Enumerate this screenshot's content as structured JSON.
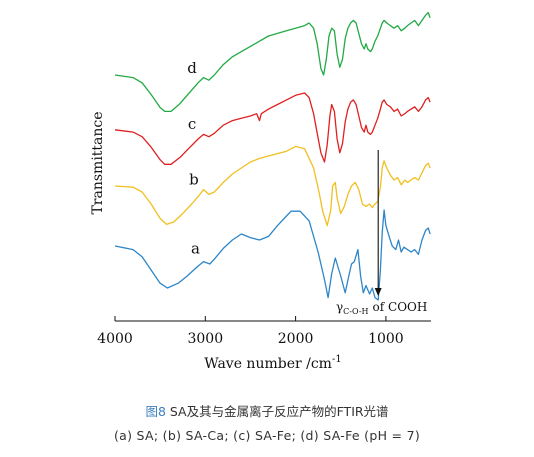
{
  "chart_data": {
    "type": "line",
    "title": "",
    "xlabel": "Wave number /cm",
    "xlabel_sup": "-1",
    "ylabel": "Transmittance",
    "xlim": [
      4000,
      500
    ],
    "x_ticks": [
      4000,
      3000,
      2000,
      1000
    ],
    "x_tick_labels": [
      "4000",
      "3000",
      "2000",
      "1000"
    ],
    "y_ticks": "none",
    "grid": false,
    "legend": "none (curves labeled inline)",
    "annotation": {
      "symbol": "γ",
      "subscript": "C-O-H",
      "text": "of COOH",
      "arrow_at": 1085
    },
    "series": [
      {
        "label": "a",
        "color": "#2e86c8",
        "points": [
          [
            4000,
            0.45
          ],
          [
            3800,
            0.42
          ],
          [
            3700,
            0.36
          ],
          [
            3600,
            0.25
          ],
          [
            3500,
            0.14
          ],
          [
            3420,
            0.1
          ],
          [
            3300,
            0.14
          ],
          [
            3200,
            0.2
          ],
          [
            3100,
            0.27
          ],
          [
            3020,
            0.32
          ],
          [
            2950,
            0.3
          ],
          [
            2900,
            0.34
          ],
          [
            2800,
            0.43
          ],
          [
            2700,
            0.5
          ],
          [
            2600,
            0.55
          ],
          [
            2500,
            0.52
          ],
          [
            2400,
            0.5
          ],
          [
            2300,
            0.53
          ],
          [
            2200,
            0.62
          ],
          [
            2100,
            0.7
          ],
          [
            2050,
            0.74
          ],
          [
            1950,
            0.74
          ],
          [
            1850,
            0.66
          ],
          [
            1750,
            0.4
          ],
          [
            1680,
            0.17
          ],
          [
            1640,
            0.02
          ],
          [
            1600,
            0.22
          ],
          [
            1560,
            0.35
          ],
          [
            1500,
            0.2
          ],
          [
            1450,
            0.06
          ],
          [
            1410,
            0.2
          ],
          [
            1380,
            0.3
          ],
          [
            1350,
            0.32
          ],
          [
            1310,
            0.42
          ],
          [
            1280,
            0.2
          ],
          [
            1250,
            0.06
          ],
          [
            1220,
            0.12
          ],
          [
            1180,
            0.05
          ],
          [
            1150,
            0.1
          ],
          [
            1120,
            0.02
          ],
          [
            1085,
            0.0
          ],
          [
            1060,
            0.25
          ],
          [
            1040,
            0.56
          ],
          [
            1020,
            0.75
          ],
          [
            1000,
            0.62
          ],
          [
            960,
            0.52
          ],
          [
            930,
            0.45
          ],
          [
            890,
            0.42
          ],
          [
            860,
            0.5
          ],
          [
            830,
            0.4
          ],
          [
            800,
            0.44
          ],
          [
            760,
            0.42
          ],
          [
            720,
            0.4
          ],
          [
            680,
            0.42
          ],
          [
            640,
            0.38
          ],
          [
            600,
            0.5
          ],
          [
            560,
            0.58
          ],
          [
            530,
            0.6
          ],
          [
            510,
            0.55
          ]
        ]
      },
      {
        "label": "b",
        "color": "#f0c020",
        "points": [
          [
            4000,
            0.45
          ],
          [
            3800,
            0.44
          ],
          [
            3700,
            0.4
          ],
          [
            3600,
            0.3
          ],
          [
            3500,
            0.18
          ],
          [
            3430,
            0.13
          ],
          [
            3350,
            0.15
          ],
          [
            3250,
            0.22
          ],
          [
            3150,
            0.3
          ],
          [
            3060,
            0.38
          ],
          [
            3020,
            0.42
          ],
          [
            2960,
            0.38
          ],
          [
            2900,
            0.4
          ],
          [
            2800,
            0.48
          ],
          [
            2700,
            0.55
          ],
          [
            2600,
            0.6
          ],
          [
            2500,
            0.65
          ],
          [
            2400,
            0.68
          ],
          [
            2300,
            0.7
          ],
          [
            2200,
            0.72
          ],
          [
            2100,
            0.74
          ],
          [
            2000,
            0.78
          ],
          [
            1900,
            0.76
          ],
          [
            1800,
            0.6
          ],
          [
            1740,
            0.4
          ],
          [
            1700,
            0.24
          ],
          [
            1650,
            0.12
          ],
          [
            1610,
            0.25
          ],
          [
            1590,
            0.45
          ],
          [
            1560,
            0.48
          ],
          [
            1540,
            0.35
          ],
          [
            1500,
            0.22
          ],
          [
            1460,
            0.28
          ],
          [
            1420,
            0.38
          ],
          [
            1380,
            0.45
          ],
          [
            1340,
            0.48
          ],
          [
            1300,
            0.42
          ],
          [
            1260,
            0.3
          ],
          [
            1220,
            0.28
          ],
          [
            1180,
            0.3
          ],
          [
            1150,
            0.27
          ],
          [
            1120,
            0.3
          ],
          [
            1090,
            0.32
          ],
          [
            1060,
            0.44
          ],
          [
            1040,
            0.6
          ],
          [
            1020,
            0.66
          ],
          [
            990,
            0.6
          ],
          [
            950,
            0.54
          ],
          [
            910,
            0.5
          ],
          [
            870,
            0.52
          ],
          [
            830,
            0.46
          ],
          [
            790,
            0.5
          ],
          [
            760,
            0.48
          ],
          [
            720,
            0.5
          ],
          [
            680,
            0.52
          ],
          [
            640,
            0.5
          ],
          [
            600,
            0.56
          ],
          [
            560,
            0.62
          ],
          [
            530,
            0.64
          ],
          [
            510,
            0.6
          ]
        ]
      },
      {
        "label": "c",
        "color": "#e02020",
        "points": [
          [
            4000,
            0.48
          ],
          [
            3800,
            0.46
          ],
          [
            3700,
            0.42
          ],
          [
            3600,
            0.33
          ],
          [
            3500,
            0.22
          ],
          [
            3450,
            0.18
          ],
          [
            3380,
            0.18
          ],
          [
            3280,
            0.24
          ],
          [
            3180,
            0.32
          ],
          [
            3080,
            0.4
          ],
          [
            3020,
            0.44
          ],
          [
            2960,
            0.42
          ],
          [
            2900,
            0.45
          ],
          [
            2800,
            0.52
          ],
          [
            2700,
            0.56
          ],
          [
            2600,
            0.58
          ],
          [
            2500,
            0.6
          ],
          [
            2430,
            0.62
          ],
          [
            2400,
            0.56
          ],
          [
            2380,
            0.62
          ],
          [
            2300,
            0.66
          ],
          [
            2200,
            0.7
          ],
          [
            2100,
            0.74
          ],
          [
            2000,
            0.78
          ],
          [
            1900,
            0.8
          ],
          [
            1850,
            0.76
          ],
          [
            1800,
            0.62
          ],
          [
            1760,
            0.45
          ],
          [
            1720,
            0.28
          ],
          [
            1680,
            0.2
          ],
          [
            1650,
            0.35
          ],
          [
            1620,
            0.6
          ],
          [
            1600,
            0.7
          ],
          [
            1570,
            0.64
          ],
          [
            1540,
            0.4
          ],
          [
            1510,
            0.28
          ],
          [
            1480,
            0.36
          ],
          [
            1450,
            0.55
          ],
          [
            1420,
            0.66
          ],
          [
            1390,
            0.72
          ],
          [
            1360,
            0.74
          ],
          [
            1330,
            0.7
          ],
          [
            1300,
            0.6
          ],
          [
            1270,
            0.5
          ],
          [
            1240,
            0.46
          ],
          [
            1220,
            0.52
          ],
          [
            1200,
            0.46
          ],
          [
            1170,
            0.44
          ],
          [
            1150,
            0.46
          ],
          [
            1120,
            0.52
          ],
          [
            1090,
            0.58
          ],
          [
            1060,
            0.66
          ],
          [
            1040,
            0.72
          ],
          [
            1020,
            0.74
          ],
          [
            990,
            0.7
          ],
          [
            950,
            0.68
          ],
          [
            910,
            0.64
          ],
          [
            870,
            0.66
          ],
          [
            830,
            0.6
          ],
          [
            790,
            0.62
          ],
          [
            760,
            0.64
          ],
          [
            720,
            0.66
          ],
          [
            680,
            0.68
          ],
          [
            640,
            0.64
          ],
          [
            600,
            0.68
          ],
          [
            560,
            0.74
          ],
          [
            530,
            0.76
          ],
          [
            510,
            0.72
          ]
        ]
      },
      {
        "label": "d",
        "color": "#22aa44",
        "points": [
          [
            4000,
            0.5
          ],
          [
            3800,
            0.48
          ],
          [
            3700,
            0.44
          ],
          [
            3600,
            0.35
          ],
          [
            3500,
            0.25
          ],
          [
            3450,
            0.22
          ],
          [
            3380,
            0.22
          ],
          [
            3280,
            0.28
          ],
          [
            3180,
            0.36
          ],
          [
            3080,
            0.44
          ],
          [
            3020,
            0.48
          ],
          [
            2960,
            0.46
          ],
          [
            2900,
            0.5
          ],
          [
            2800,
            0.58
          ],
          [
            2700,
            0.64
          ],
          [
            2600,
            0.68
          ],
          [
            2500,
            0.72
          ],
          [
            2400,
            0.76
          ],
          [
            2300,
            0.8
          ],
          [
            2200,
            0.82
          ],
          [
            2100,
            0.84
          ],
          [
            2000,
            0.86
          ],
          [
            1900,
            0.88
          ],
          [
            1850,
            0.9
          ],
          [
            1800,
            0.86
          ],
          [
            1760,
            0.74
          ],
          [
            1720,
            0.55
          ],
          [
            1690,
            0.5
          ],
          [
            1660,
            0.62
          ],
          [
            1630,
            0.8
          ],
          [
            1600,
            0.86
          ],
          [
            1570,
            0.84
          ],
          [
            1540,
            0.66
          ],
          [
            1510,
            0.56
          ],
          [
            1480,
            0.62
          ],
          [
            1450,
            0.78
          ],
          [
            1420,
            0.86
          ],
          [
            1390,
            0.9
          ],
          [
            1360,
            0.92
          ],
          [
            1330,
            0.9
          ],
          [
            1300,
            0.82
          ],
          [
            1270,
            0.74
          ],
          [
            1240,
            0.7
          ],
          [
            1220,
            0.74
          ],
          [
            1200,
            0.7
          ],
          [
            1170,
            0.68
          ],
          [
            1150,
            0.7
          ],
          [
            1120,
            0.76
          ],
          [
            1090,
            0.8
          ],
          [
            1060,
            0.86
          ],
          [
            1040,
            0.9
          ],
          [
            1020,
            0.92
          ],
          [
            990,
            0.9
          ],
          [
            950,
            0.88
          ],
          [
            910,
            0.86
          ],
          [
            870,
            0.88
          ],
          [
            830,
            0.84
          ],
          [
            790,
            0.86
          ],
          [
            760,
            0.88
          ],
          [
            720,
            0.9
          ],
          [
            680,
            0.92
          ],
          [
            640,
            0.88
          ],
          [
            600,
            0.92
          ],
          [
            560,
            0.96
          ],
          [
            530,
            0.98
          ],
          [
            510,
            0.94
          ]
        ]
      }
    ]
  },
  "caption": {
    "figure_number": "图8",
    "title": " SA及其与金属离子反应产物的FTIR光谱",
    "subtitle": "(a) SA;  (b) SA-Ca;  (c) SA-Fe;  (d) SA-Fe (pH = 7)"
  }
}
